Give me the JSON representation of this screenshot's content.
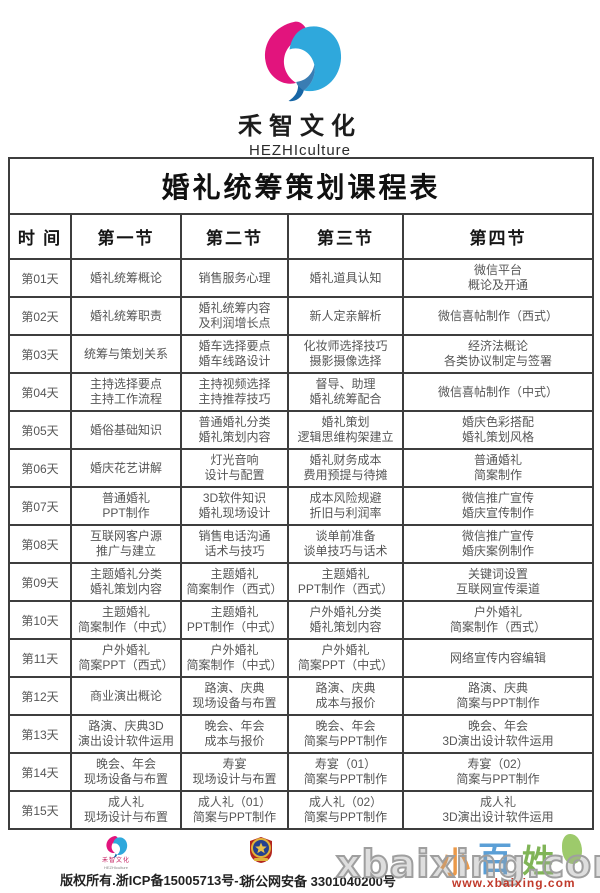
{
  "brand": {
    "name_cn": "禾智文化",
    "name_en": "HEZHIculture",
    "logo_pink": "#e2147d",
    "logo_blue": "#2fa8dc",
    "logo_blue_dark": "#1766a6"
  },
  "table": {
    "title": "婚礼统筹策划课程表",
    "headers": [
      "时  间",
      "第一节",
      "第二节",
      "第三节",
      "第四节"
    ],
    "rows": [
      {
        "day": "第01天",
        "cells": [
          [
            "婚礼统筹概论"
          ],
          [
            "销售服务心理"
          ],
          [
            "婚礼道具认知"
          ],
          [
            "微信平台",
            "概论及开通"
          ]
        ]
      },
      {
        "day": "第02天",
        "cells": [
          [
            "婚礼统筹职责"
          ],
          [
            "婚礼统筹内容",
            "及利润增长点"
          ],
          [
            "新人定亲解析"
          ],
          [
            "微信喜帖制作（西式）"
          ]
        ]
      },
      {
        "day": "第03天",
        "cells": [
          [
            "统筹与策划关系"
          ],
          [
            "婚车选择要点",
            "婚车线路设计"
          ],
          [
            "化妆师选择技巧",
            "摄影摄像选择"
          ],
          [
            "经济法概论",
            "各类协议制定与签署"
          ]
        ]
      },
      {
        "day": "第04天",
        "cells": [
          [
            "主持选择要点",
            "主持工作流程"
          ],
          [
            "主持视频选择",
            "主持推荐技巧"
          ],
          [
            "督导、助理",
            "婚礼统筹配合"
          ],
          [
            "微信喜帖制作（中式）"
          ]
        ]
      },
      {
        "day": "第05天",
        "cells": [
          [
            "婚俗基础知识"
          ],
          [
            "普通婚礼分类",
            "婚礼策划内容"
          ],
          [
            "婚礼策划",
            "逻辑思维构架建立"
          ],
          [
            "婚庆色彩搭配",
            "婚礼策划风格"
          ]
        ]
      },
      {
        "day": "第06天",
        "cells": [
          [
            "婚庆花艺讲解"
          ],
          [
            "灯光音响",
            "设计与配置"
          ],
          [
            "婚礼财务成本",
            "费用预提与待摊"
          ],
          [
            "普通婚礼",
            "简案制作"
          ]
        ]
      },
      {
        "day": "第07天",
        "cells": [
          [
            "普通婚礼",
            "PPT制作"
          ],
          [
            "3D软件知识",
            "婚礼现场设计"
          ],
          [
            "成本风险规避",
            "折旧与利润率"
          ],
          [
            "微信推广宣传",
            "婚庆宣传制作"
          ]
        ]
      },
      {
        "day": "第08天",
        "cells": [
          [
            "互联网客户源",
            "推广与建立"
          ],
          [
            "销售电话沟通",
            "话术与技巧"
          ],
          [
            "谈单前准备",
            "谈单技巧与话术"
          ],
          [
            "微信推广宣传",
            "婚庆案例制作"
          ]
        ]
      },
      {
        "day": "第09天",
        "cells": [
          [
            "主题婚礼分类",
            "婚礼策划内容"
          ],
          [
            "主题婚礼",
            "简案制作（西式）"
          ],
          [
            "主题婚礼",
            "PPT制作（西式）"
          ],
          [
            "关键词设置",
            "互联网宣传渠道"
          ]
        ]
      },
      {
        "day": "第10天",
        "cells": [
          [
            "主题婚礼",
            "简案制作（中式）"
          ],
          [
            "主题婚礼",
            "PPT制作（中式）"
          ],
          [
            "户外婚礼分类",
            "婚礼策划内容"
          ],
          [
            "户外婚礼",
            "简案制作（西式）"
          ]
        ]
      },
      {
        "day": "第11天",
        "cells": [
          [
            "户外婚礼",
            "简案PPT（西式）"
          ],
          [
            "户外婚礼",
            "简案制作（中式）"
          ],
          [
            "户外婚礼",
            "简案PPT（中式）"
          ],
          [
            "网络宣传内容编辑"
          ]
        ]
      },
      {
        "day": "第12天",
        "cells": [
          [
            "商业演出概论"
          ],
          [
            "路演、庆典",
            "现场设备与布置"
          ],
          [
            "路演、庆典",
            "成本与报价"
          ],
          [
            "路演、庆典",
            "简案与PPT制作"
          ]
        ]
      },
      {
        "day": "第13天",
        "cells": [
          [
            "路演、庆典3D",
            "演出设计软件运用"
          ],
          [
            "晚会、年会",
            "成本与报价"
          ],
          [
            "晚会、年会",
            "简案与PPT制作"
          ],
          [
            "晚会、年会",
            "3D演出设计软件运用"
          ]
        ]
      },
      {
        "day": "第14天",
        "cells": [
          [
            "晚会、年会",
            "现场设备与布置"
          ],
          [
            "寿宴",
            "现场设计与布置"
          ],
          [
            "寿宴（01）",
            "简案与PPT制作"
          ],
          [
            "寿宴（02）",
            "简案与PPT制作"
          ]
        ]
      },
      {
        "day": "第15天",
        "cells": [
          [
            "成人礼",
            "现场设计与布置"
          ],
          [
            "成人礼（01）",
            "简案与PPT制作"
          ],
          [
            "成人礼（02）",
            "简案与PPT制作"
          ],
          [
            "成人礼",
            "3D演出设计软件运用"
          ]
        ]
      }
    ]
  },
  "footer": {
    "mini_brand_cn": "禾智文化",
    "mini_brand_en": "HEZHIculture",
    "copyright": "版权所有.浙ICP备15005713号-1",
    "police_filing": "浙公网安备 3301040200号",
    "watermark": "xbaixing.com",
    "site_link": "www.xbaixing.com",
    "art_chars": {
      "c1": "小",
      "c2": "百",
      "c3": "姓"
    }
  }
}
